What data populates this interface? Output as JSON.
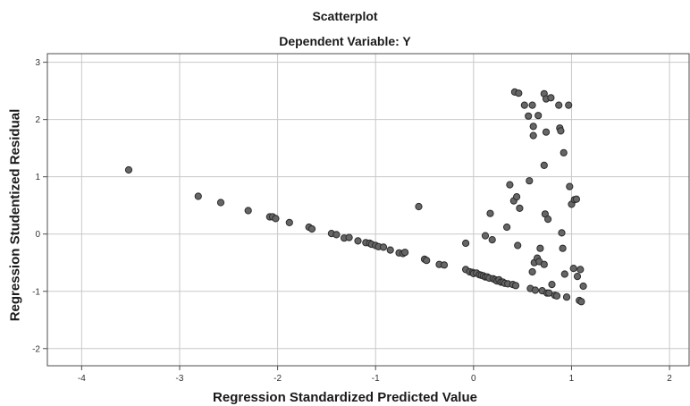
{
  "chart_data": {
    "type": "scatter",
    "title": "Scatterplot",
    "subtitle": "Dependent Variable: Y",
    "xlabel": "Regression Standardized Predicted Value",
    "ylabel": "Regression Studentized Residual",
    "xlim": [
      -4.35,
      2.2
    ],
    "ylim": [
      -2.3,
      3.15
    ],
    "xticks": [
      -4,
      -3,
      -2,
      -1,
      0,
      1,
      2
    ],
    "yticks": [
      -2,
      -1,
      0,
      1,
      2,
      3
    ],
    "grid": true,
    "marker_color": "#666666",
    "series": [
      {
        "points": [
          [
            -3.52,
            1.12
          ],
          [
            -2.81,
            0.66
          ],
          [
            -2.58,
            0.55
          ],
          [
            -2.3,
            0.41
          ],
          [
            -2.08,
            0.3
          ],
          [
            -2.05,
            0.3
          ],
          [
            -2.02,
            0.27
          ],
          [
            -1.88,
            0.2
          ],
          [
            -1.68,
            0.12
          ],
          [
            -1.65,
            0.09
          ],
          [
            -1.45,
            0.01
          ],
          [
            -1.4,
            -0.01
          ],
          [
            -1.32,
            -0.07
          ],
          [
            -1.27,
            -0.06
          ],
          [
            -1.18,
            -0.12
          ],
          [
            -1.1,
            -0.15
          ],
          [
            -1.06,
            -0.16
          ],
          [
            -1.04,
            -0.18
          ],
          [
            -1.0,
            -0.2
          ],
          [
            -0.97,
            -0.22
          ],
          [
            -0.92,
            -0.23
          ],
          [
            -0.85,
            -0.28
          ],
          [
            -0.76,
            -0.33
          ],
          [
            -0.72,
            -0.34
          ],
          [
            -0.7,
            -0.32
          ],
          [
            -0.56,
            0.48
          ],
          [
            -0.5,
            -0.44
          ],
          [
            -0.48,
            -0.46
          ],
          [
            -0.35,
            -0.53
          ],
          [
            -0.3,
            -0.54
          ],
          [
            -0.08,
            -0.16
          ],
          [
            -0.08,
            -0.62
          ],
          [
            -0.04,
            -0.66
          ],
          [
            -0.01,
            -0.67
          ],
          [
            0.0,
            -0.69
          ],
          [
            0.03,
            -0.68
          ],
          [
            0.06,
            -0.71
          ],
          [
            0.08,
            -0.72
          ],
          [
            0.1,
            -0.73
          ],
          [
            0.12,
            -0.75
          ],
          [
            0.12,
            -0.03
          ],
          [
            0.14,
            -0.75
          ],
          [
            0.16,
            -0.77
          ],
          [
            0.17,
            0.36
          ],
          [
            0.19,
            -0.1
          ],
          [
            0.2,
            -0.78
          ],
          [
            0.22,
            -0.8
          ],
          [
            0.24,
            -0.82
          ],
          [
            0.26,
            -0.8
          ],
          [
            0.28,
            -0.84
          ],
          [
            0.3,
            -0.84
          ],
          [
            0.32,
            -0.86
          ],
          [
            0.34,
            0.12
          ],
          [
            0.35,
            -0.87
          ],
          [
            0.37,
            0.86
          ],
          [
            0.4,
            -0.88
          ],
          [
            0.41,
            0.58
          ],
          [
            0.42,
            2.48
          ],
          [
            0.43,
            -0.9
          ],
          [
            0.44,
            0.65
          ],
          [
            0.45,
            -0.2
          ],
          [
            0.46,
            2.46
          ],
          [
            0.47,
            0.45
          ],
          [
            0.52,
            2.25
          ],
          [
            0.56,
            2.06
          ],
          [
            0.57,
            0.93
          ],
          [
            0.58,
            -0.95
          ],
          [
            0.6,
            2.25
          ],
          [
            0.6,
            -0.66
          ],
          [
            0.61,
            1.72
          ],
          [
            0.61,
            1.88
          ],
          [
            0.62,
            -0.5
          ],
          [
            0.63,
            -0.98
          ],
          [
            0.65,
            -0.42
          ],
          [
            0.66,
            2.07
          ],
          [
            0.67,
            -0.48
          ],
          [
            0.68,
            -0.25
          ],
          [
            0.7,
            -0.99
          ],
          [
            0.72,
            2.45
          ],
          [
            0.72,
            1.2
          ],
          [
            0.72,
            -0.53
          ],
          [
            0.73,
            0.35
          ],
          [
            0.74,
            1.78
          ],
          [
            0.74,
            2.36
          ],
          [
            0.75,
            -1.03
          ],
          [
            0.76,
            0.26
          ],
          [
            0.77,
            -1.03
          ],
          [
            0.79,
            2.38
          ],
          [
            0.8,
            -0.88
          ],
          [
            0.83,
            -1.07
          ],
          [
            0.85,
            -1.08
          ],
          [
            0.87,
            2.25
          ],
          [
            0.88,
            1.85
          ],
          [
            0.89,
            1.8
          ],
          [
            0.9,
            0.02
          ],
          [
            0.91,
            -0.25
          ],
          [
            0.92,
            1.42
          ],
          [
            0.93,
            -0.7
          ],
          [
            0.95,
            -1.1
          ],
          [
            0.97,
            2.25
          ],
          [
            0.98,
            0.83
          ],
          [
            1.0,
            0.52
          ],
          [
            1.02,
            -0.6
          ],
          [
            1.03,
            0.6
          ],
          [
            1.05,
            0.61
          ],
          [
            1.06,
            -0.74
          ],
          [
            1.08,
            -1.16
          ],
          [
            1.09,
            -0.62
          ],
          [
            1.1,
            -1.18
          ],
          [
            1.12,
            -0.91
          ]
        ]
      }
    ]
  }
}
